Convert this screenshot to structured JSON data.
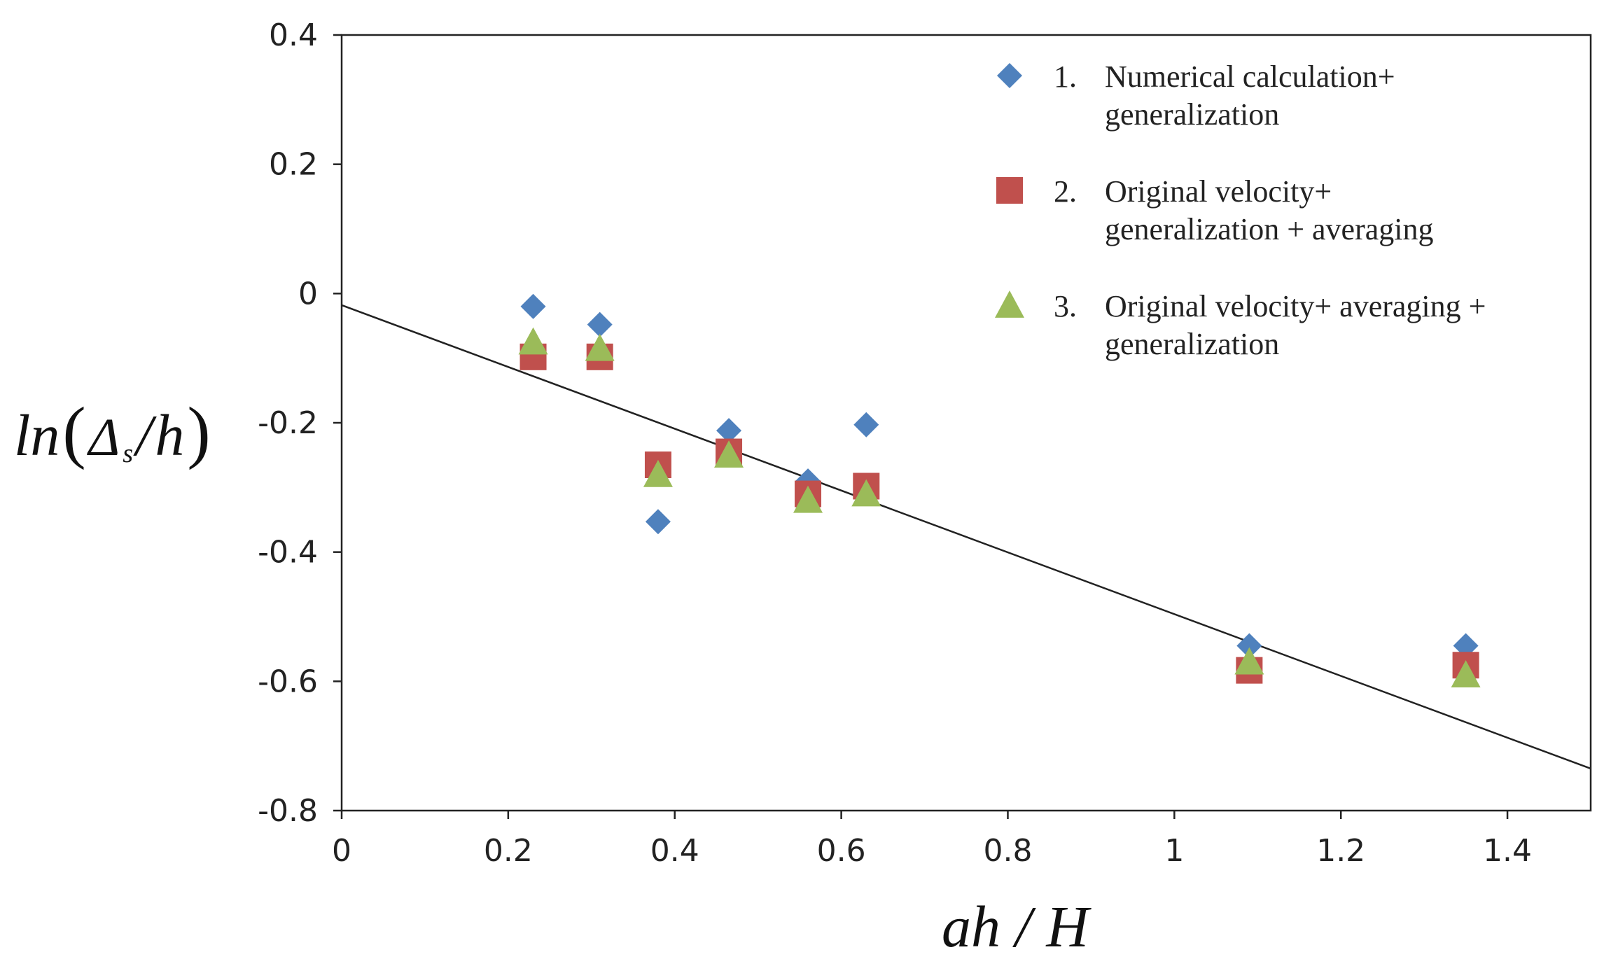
{
  "chart_data": {
    "type": "scatter",
    "title": "",
    "xlabel": "ah/H",
    "ylabel": "ln(Δs/h)",
    "ylabel_parts": {
      "fn": "ln",
      "delta": "Δ",
      "sub": "s",
      "slash": "/",
      "h": "h",
      "open": "(",
      "close": ")"
    },
    "xlabel_parts": {
      "a": "ah",
      "slash": "/",
      "H": "H"
    },
    "xlim": [
      0,
      1.5
    ],
    "ylim": [
      -0.8,
      0.4
    ],
    "xticks": [
      0,
      0.2,
      0.4,
      0.6,
      0.8,
      1,
      1.2,
      1.4
    ],
    "xtick_labels": [
      "0",
      "0.2",
      "0.4",
      "0.6",
      "0.8",
      "1",
      "1.2",
      "1.4"
    ],
    "yticks": [
      0.4,
      0.2,
      0,
      -0.2,
      -0.4,
      -0.6,
      -0.8
    ],
    "ytick_labels": [
      "0.4",
      "0.2",
      "0",
      "-0.2",
      "-0.4",
      "-0.6",
      "-0.8"
    ],
    "grid": false,
    "legend_position": "top-right",
    "series": [
      {
        "name": "Numerical calculation+ generalization",
        "legend_number": "1.",
        "legend_lines": [
          "Numerical calculation+",
          "generalization"
        ],
        "marker": "diamond",
        "color": "#4F81BD",
        "x": [
          0.23,
          0.31,
          0.38,
          0.465,
          0.56,
          0.63,
          1.09,
          1.35
        ],
        "y": [
          -0.02,
          -0.048,
          -0.353,
          -0.212,
          -0.29,
          -0.203,
          -0.545,
          -0.545
        ]
      },
      {
        "name": "Original velocity+ generalization + averaging",
        "legend_number": "2.",
        "legend_lines": [
          "Original velocity+",
          "generalization + averaging"
        ],
        "marker": "square",
        "color": "#C0504D",
        "x": [
          0.23,
          0.31,
          0.38,
          0.465,
          0.56,
          0.63,
          1.09,
          1.35
        ],
        "y": [
          -0.098,
          -0.098,
          -0.265,
          -0.245,
          -0.31,
          -0.298,
          -0.583,
          -0.575
        ]
      },
      {
        "name": "Original velocity+ averaging + generalization",
        "legend_number": "3.",
        "legend_lines": [
          "Original velocity+ averaging +",
          "generalization"
        ],
        "marker": "triangle",
        "color": "#9BBB59",
        "x": [
          0.23,
          0.31,
          0.38,
          0.465,
          0.56,
          0.63,
          1.09,
          1.35
        ],
        "y": [
          -0.075,
          -0.085,
          -0.28,
          -0.25,
          -0.32,
          -0.31,
          -0.57,
          -0.59
        ]
      }
    ],
    "trendline": {
      "x": [
        0,
        1.5
      ],
      "y": [
        -0.018,
        -0.735
      ],
      "color": "#222222"
    }
  }
}
